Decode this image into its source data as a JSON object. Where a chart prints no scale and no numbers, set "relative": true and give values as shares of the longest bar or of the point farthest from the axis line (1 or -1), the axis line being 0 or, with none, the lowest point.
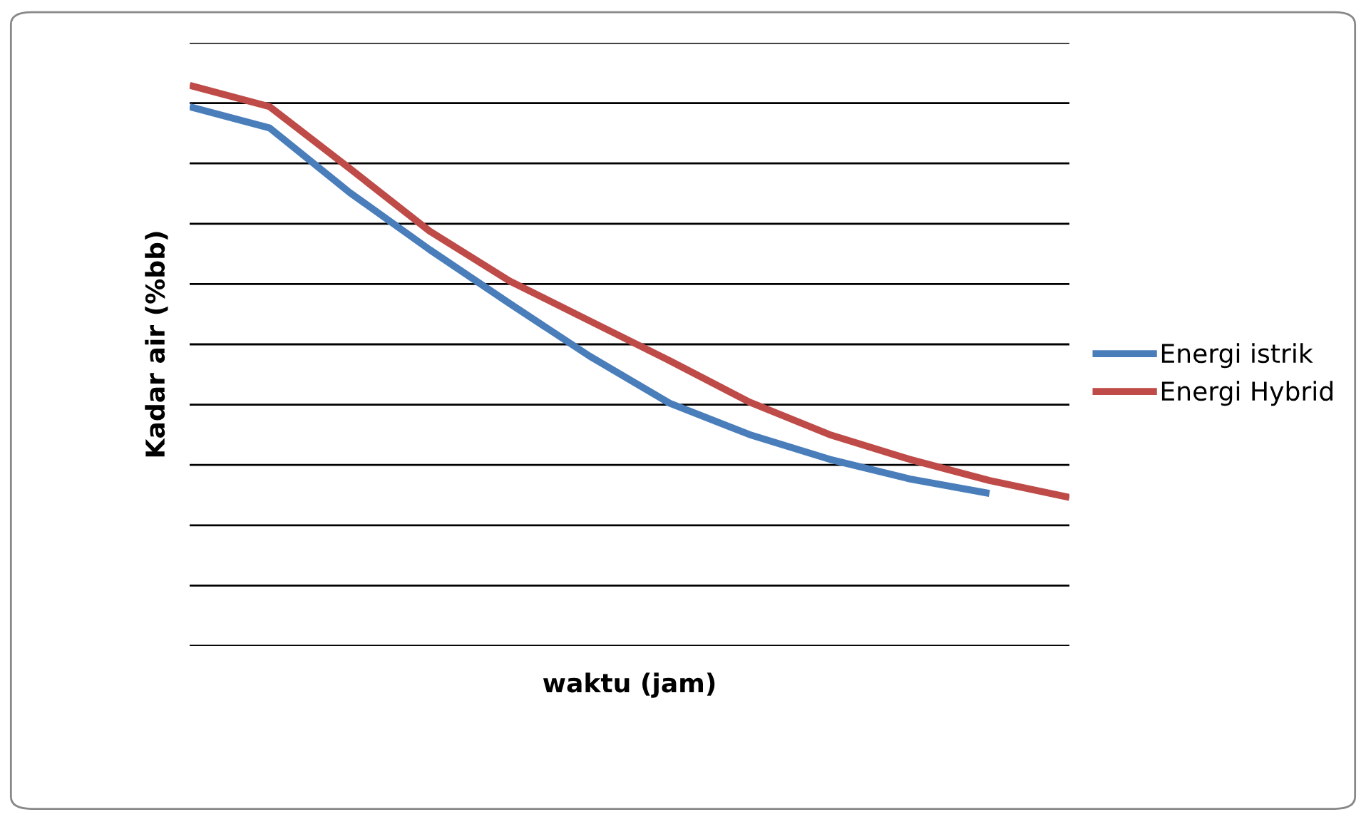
{
  "chart_data": {
    "type": "line",
    "relative": true,
    "xlabel": "waktu (jam)",
    "ylabel": "Kadar air (%bb)",
    "categories": [
      null,
      null,
      null,
      null,
      null,
      null,
      null,
      null,
      null,
      null,
      null,
      null
    ],
    "series": [
      {
        "name": "Energi istrik",
        "color": "#4a7ebb",
        "values": [
          0.962,
          0.924,
          0.809,
          0.707,
          0.611,
          0.517,
          0.433,
          0.377,
          0.333,
          0.298,
          0.272,
          null
        ]
      },
      {
        "name": "Energi Hybrid",
        "color": "#be4b48",
        "values": [
          1,
          0.962,
          0.852,
          0.74,
          0.651,
          0.58,
          0.509,
          0.435,
          0.377,
          0.333,
          0.295,
          0.265
        ]
      }
    ],
    "grid": "y",
    "legend": "right",
    "marker": "none",
    "line_style": "solid"
  }
}
